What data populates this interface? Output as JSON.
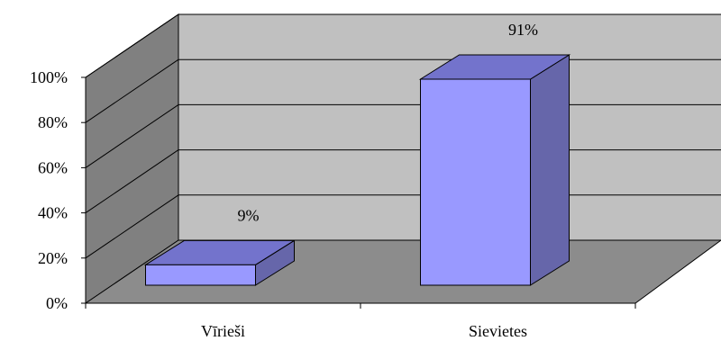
{
  "chart_data": {
    "type": "bar",
    "categories": [
      "Vīrieši",
      "Sievietes"
    ],
    "series": [
      {
        "values": [
          9,
          91
        ],
        "value_labels": [
          "9%",
          "91%"
        ]
      }
    ],
    "yticks": [
      "0%",
      "20%",
      "40%",
      "60%",
      "80%",
      "100%"
    ],
    "ylim": [
      0,
      100
    ],
    "title": "",
    "xlabel": "",
    "ylabel": "",
    "grid": true,
    "three_d": true,
    "colors": {
      "bar_front": "#9999ff",
      "bar_top": "#7373cc",
      "bar_side": "#6666aa",
      "back_wall": "#c0c0c0",
      "side_wall": "#808080",
      "floor": "#8c8c8c",
      "gridline": "#000000"
    }
  }
}
